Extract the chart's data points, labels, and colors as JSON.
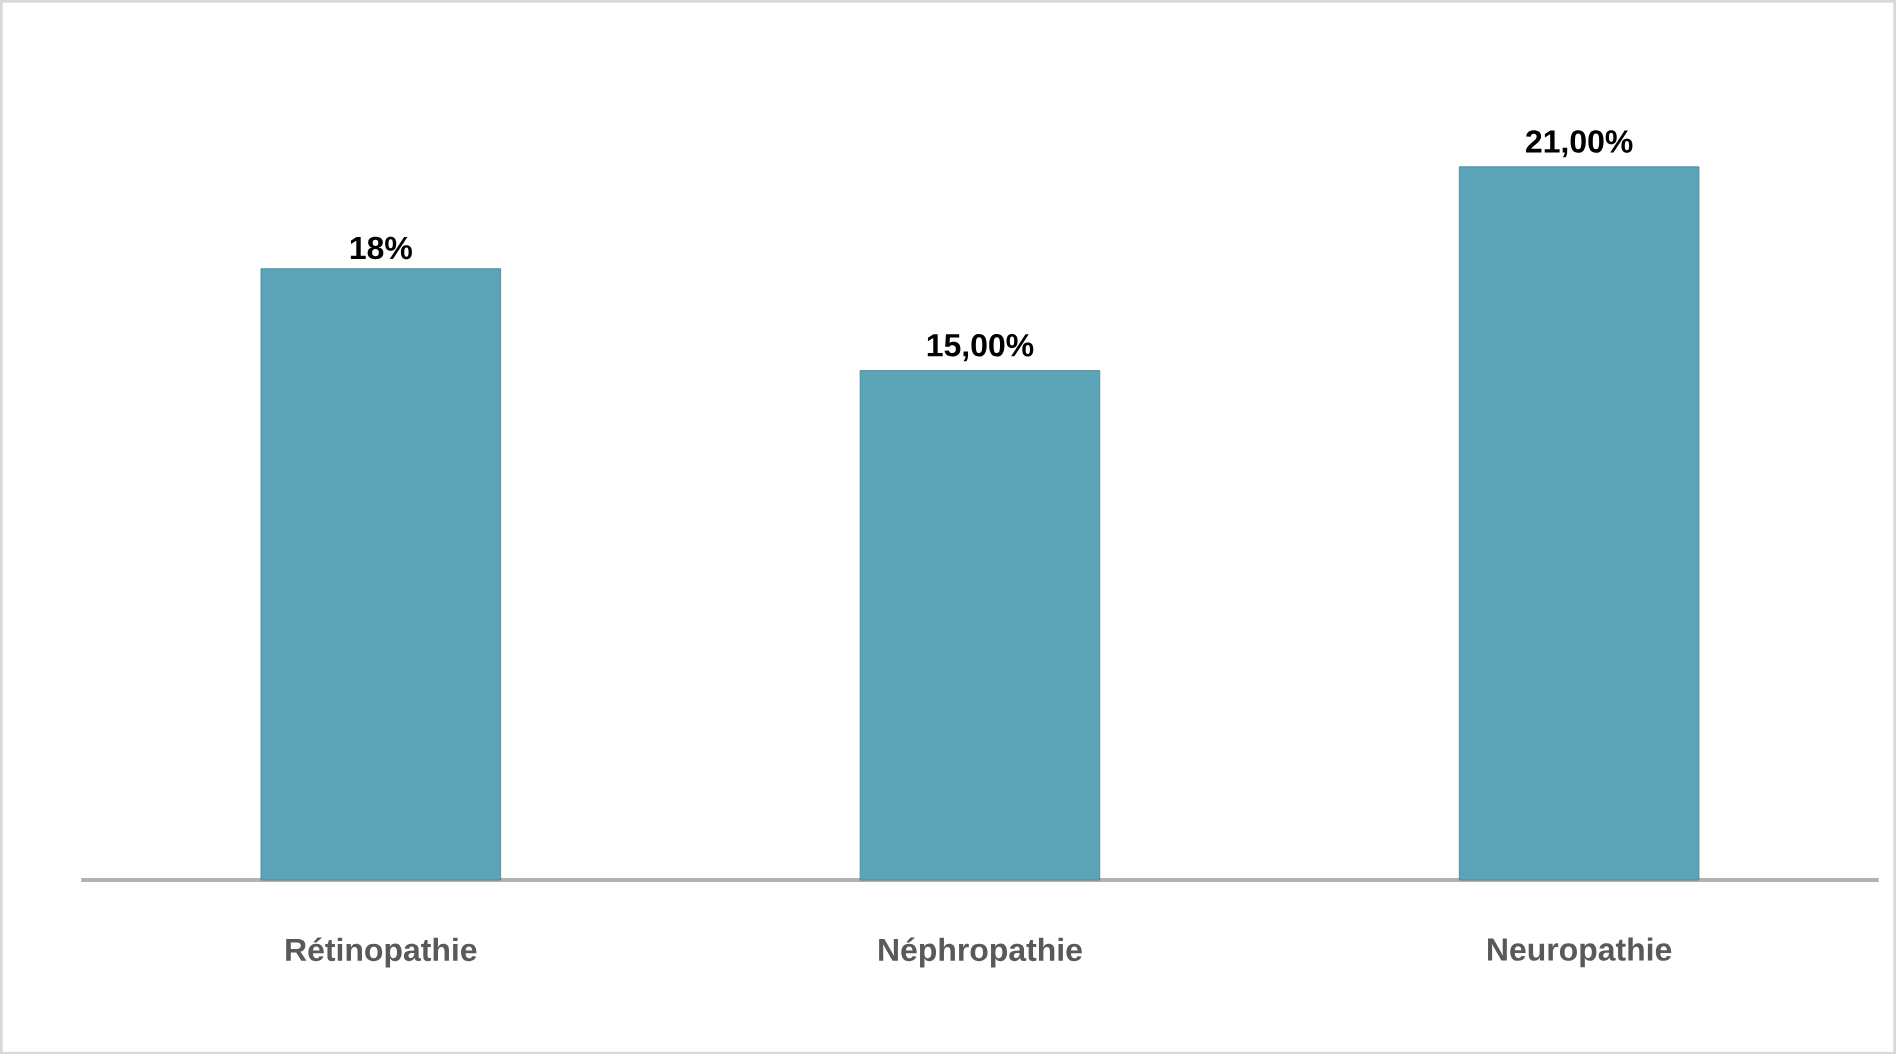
{
  "chart_data": {
    "type": "bar",
    "categories": [
      "Rétinopathie",
      "Néphropathie",
      "Neuropathie"
    ],
    "values": [
      18,
      15,
      21
    ],
    "value_labels": [
      "18%",
      "15,00%",
      "21,00%"
    ],
    "color": "#5ba3b6"
  }
}
